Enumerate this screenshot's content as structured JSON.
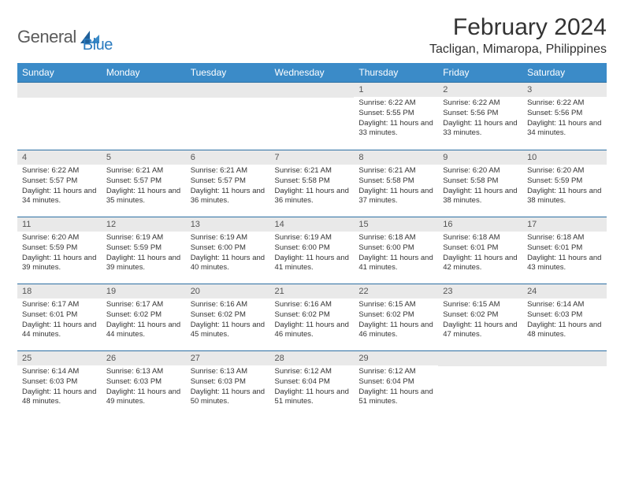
{
  "logo": {
    "word1": "General",
    "word2": "Blue"
  },
  "title": "February 2024",
  "location": "Tacligan, Mimaropa, Philippines",
  "colors": {
    "header_bg": "#3b8bc8",
    "header_text": "#ffffff",
    "band_bg": "#e9e9e9",
    "rule": "#2c6fa3",
    "logo_gray": "#5b5b5b",
    "logo_blue": "#2b7bbf"
  },
  "dow": [
    "Sunday",
    "Monday",
    "Tuesday",
    "Wednesday",
    "Thursday",
    "Friday",
    "Saturday"
  ],
  "weeks": [
    [
      null,
      null,
      null,
      null,
      {
        "n": "1",
        "sr": "Sunrise: 6:22 AM",
        "ss": "Sunset: 5:55 PM",
        "dl": "Daylight: 11 hours and 33 minutes."
      },
      {
        "n": "2",
        "sr": "Sunrise: 6:22 AM",
        "ss": "Sunset: 5:56 PM",
        "dl": "Daylight: 11 hours and 33 minutes."
      },
      {
        "n": "3",
        "sr": "Sunrise: 6:22 AM",
        "ss": "Sunset: 5:56 PM",
        "dl": "Daylight: 11 hours and 34 minutes."
      }
    ],
    [
      {
        "n": "4",
        "sr": "Sunrise: 6:22 AM",
        "ss": "Sunset: 5:57 PM",
        "dl": "Daylight: 11 hours and 34 minutes."
      },
      {
        "n": "5",
        "sr": "Sunrise: 6:21 AM",
        "ss": "Sunset: 5:57 PM",
        "dl": "Daylight: 11 hours and 35 minutes."
      },
      {
        "n": "6",
        "sr": "Sunrise: 6:21 AM",
        "ss": "Sunset: 5:57 PM",
        "dl": "Daylight: 11 hours and 36 minutes."
      },
      {
        "n": "7",
        "sr": "Sunrise: 6:21 AM",
        "ss": "Sunset: 5:58 PM",
        "dl": "Daylight: 11 hours and 36 minutes."
      },
      {
        "n": "8",
        "sr": "Sunrise: 6:21 AM",
        "ss": "Sunset: 5:58 PM",
        "dl": "Daylight: 11 hours and 37 minutes."
      },
      {
        "n": "9",
        "sr": "Sunrise: 6:20 AM",
        "ss": "Sunset: 5:58 PM",
        "dl": "Daylight: 11 hours and 38 minutes."
      },
      {
        "n": "10",
        "sr": "Sunrise: 6:20 AM",
        "ss": "Sunset: 5:59 PM",
        "dl": "Daylight: 11 hours and 38 minutes."
      }
    ],
    [
      {
        "n": "11",
        "sr": "Sunrise: 6:20 AM",
        "ss": "Sunset: 5:59 PM",
        "dl": "Daylight: 11 hours and 39 minutes."
      },
      {
        "n": "12",
        "sr": "Sunrise: 6:19 AM",
        "ss": "Sunset: 5:59 PM",
        "dl": "Daylight: 11 hours and 39 minutes."
      },
      {
        "n": "13",
        "sr": "Sunrise: 6:19 AM",
        "ss": "Sunset: 6:00 PM",
        "dl": "Daylight: 11 hours and 40 minutes."
      },
      {
        "n": "14",
        "sr": "Sunrise: 6:19 AM",
        "ss": "Sunset: 6:00 PM",
        "dl": "Daylight: 11 hours and 41 minutes."
      },
      {
        "n": "15",
        "sr": "Sunrise: 6:18 AM",
        "ss": "Sunset: 6:00 PM",
        "dl": "Daylight: 11 hours and 41 minutes."
      },
      {
        "n": "16",
        "sr": "Sunrise: 6:18 AM",
        "ss": "Sunset: 6:01 PM",
        "dl": "Daylight: 11 hours and 42 minutes."
      },
      {
        "n": "17",
        "sr": "Sunrise: 6:18 AM",
        "ss": "Sunset: 6:01 PM",
        "dl": "Daylight: 11 hours and 43 minutes."
      }
    ],
    [
      {
        "n": "18",
        "sr": "Sunrise: 6:17 AM",
        "ss": "Sunset: 6:01 PM",
        "dl": "Daylight: 11 hours and 44 minutes."
      },
      {
        "n": "19",
        "sr": "Sunrise: 6:17 AM",
        "ss": "Sunset: 6:02 PM",
        "dl": "Daylight: 11 hours and 44 minutes."
      },
      {
        "n": "20",
        "sr": "Sunrise: 6:16 AM",
        "ss": "Sunset: 6:02 PM",
        "dl": "Daylight: 11 hours and 45 minutes."
      },
      {
        "n": "21",
        "sr": "Sunrise: 6:16 AM",
        "ss": "Sunset: 6:02 PM",
        "dl": "Daylight: 11 hours and 46 minutes."
      },
      {
        "n": "22",
        "sr": "Sunrise: 6:15 AM",
        "ss": "Sunset: 6:02 PM",
        "dl": "Daylight: 11 hours and 46 minutes."
      },
      {
        "n": "23",
        "sr": "Sunrise: 6:15 AM",
        "ss": "Sunset: 6:02 PM",
        "dl": "Daylight: 11 hours and 47 minutes."
      },
      {
        "n": "24",
        "sr": "Sunrise: 6:14 AM",
        "ss": "Sunset: 6:03 PM",
        "dl": "Daylight: 11 hours and 48 minutes."
      }
    ],
    [
      {
        "n": "25",
        "sr": "Sunrise: 6:14 AM",
        "ss": "Sunset: 6:03 PM",
        "dl": "Daylight: 11 hours and 48 minutes."
      },
      {
        "n": "26",
        "sr": "Sunrise: 6:13 AM",
        "ss": "Sunset: 6:03 PM",
        "dl": "Daylight: 11 hours and 49 minutes."
      },
      {
        "n": "27",
        "sr": "Sunrise: 6:13 AM",
        "ss": "Sunset: 6:03 PM",
        "dl": "Daylight: 11 hours and 50 minutes."
      },
      {
        "n": "28",
        "sr": "Sunrise: 6:12 AM",
        "ss": "Sunset: 6:04 PM",
        "dl": "Daylight: 11 hours and 51 minutes."
      },
      {
        "n": "29",
        "sr": "Sunrise: 6:12 AM",
        "ss": "Sunset: 6:04 PM",
        "dl": "Daylight: 11 hours and 51 minutes."
      },
      null,
      null
    ]
  ]
}
